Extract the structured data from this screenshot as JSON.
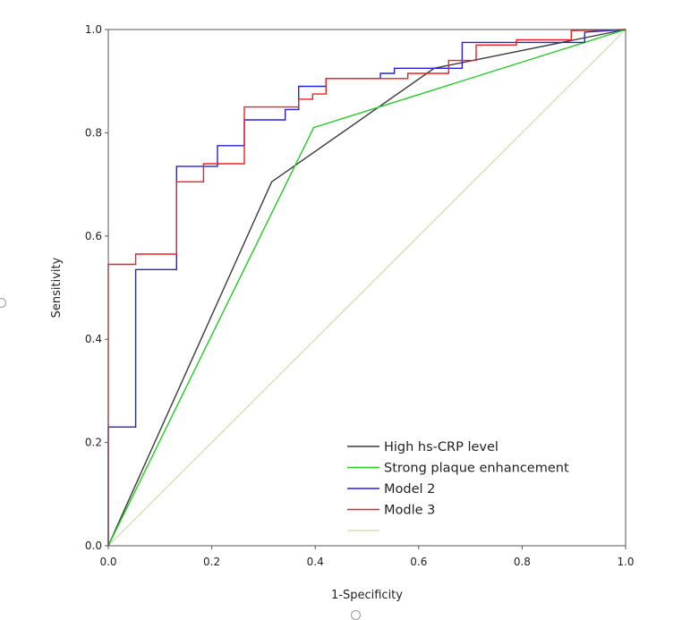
{
  "chart_data": {
    "type": "line",
    "title": "",
    "xlabel": "1-Specificity",
    "ylabel": "Sensitivity",
    "xlim": [
      0,
      1
    ],
    "ylim": [
      0,
      1
    ],
    "x_ticks": [
      "0.0",
      "0.2",
      "0.4",
      "0.6",
      "0.8",
      "1.0"
    ],
    "y_ticks": [
      "0.0",
      "0.2",
      "0.4",
      "0.6",
      "0.8",
      "1.0"
    ],
    "grid": false,
    "legend_position": "bottom-right",
    "series": [
      {
        "name": "High hs-CRP level",
        "color": "#3a3a3a",
        "x": [
          0,
          0.316,
          0.63,
          1.0
        ],
        "y": [
          0,
          0.705,
          0.925,
          1.0
        ]
      },
      {
        "name": "Strong plaque enhancement",
        "color": "#22cc22",
        "x": [
          0,
          0.397,
          1.0
        ],
        "y": [
          0,
          0.81,
          1.0
        ]
      },
      {
        "name": "Model 2",
        "color": "#2020dd",
        "x": [
          0,
          0,
          0.053,
          0.053,
          0.132,
          0.132,
          0.211,
          0.211,
          0.263,
          0.263,
          0.342,
          0.342,
          0.368,
          0.368,
          0.421,
          0.421,
          0.526,
          0.526,
          0.553,
          0.553,
          0.684,
          0.684,
          0.921,
          0.921,
          1.0
        ],
        "y": [
          0,
          0.23,
          0.23,
          0.535,
          0.535,
          0.735,
          0.735,
          0.775,
          0.775,
          0.825,
          0.825,
          0.845,
          0.845,
          0.89,
          0.89,
          0.905,
          0.905,
          0.915,
          0.915,
          0.925,
          0.925,
          0.975,
          0.975,
          0.995,
          1.0
        ]
      },
      {
        "name": "Modle 3",
        "color": "#ee2020",
        "x": [
          0,
          0,
          0.053,
          0.053,
          0.132,
          0.132,
          0.184,
          0.184,
          0.263,
          0.263,
          0.368,
          0.368,
          0.395,
          0.395,
          0.421,
          0.421,
          0.579,
          0.579,
          0.658,
          0.658,
          0.711,
          0.711,
          0.789,
          0.789,
          0.895,
          0.895,
          1.0
        ],
        "y": [
          0,
          0.545,
          0.545,
          0.565,
          0.565,
          0.705,
          0.705,
          0.74,
          0.74,
          0.85,
          0.85,
          0.865,
          0.865,
          0.875,
          0.875,
          0.905,
          0.905,
          0.915,
          0.915,
          0.94,
          0.94,
          0.97,
          0.97,
          0.98,
          0.98,
          0.998,
          1.0
        ]
      },
      {
        "name": "",
        "color": "#dcdcb8",
        "x": [
          0,
          1
        ],
        "y": [
          0,
          1
        ]
      }
    ]
  }
}
